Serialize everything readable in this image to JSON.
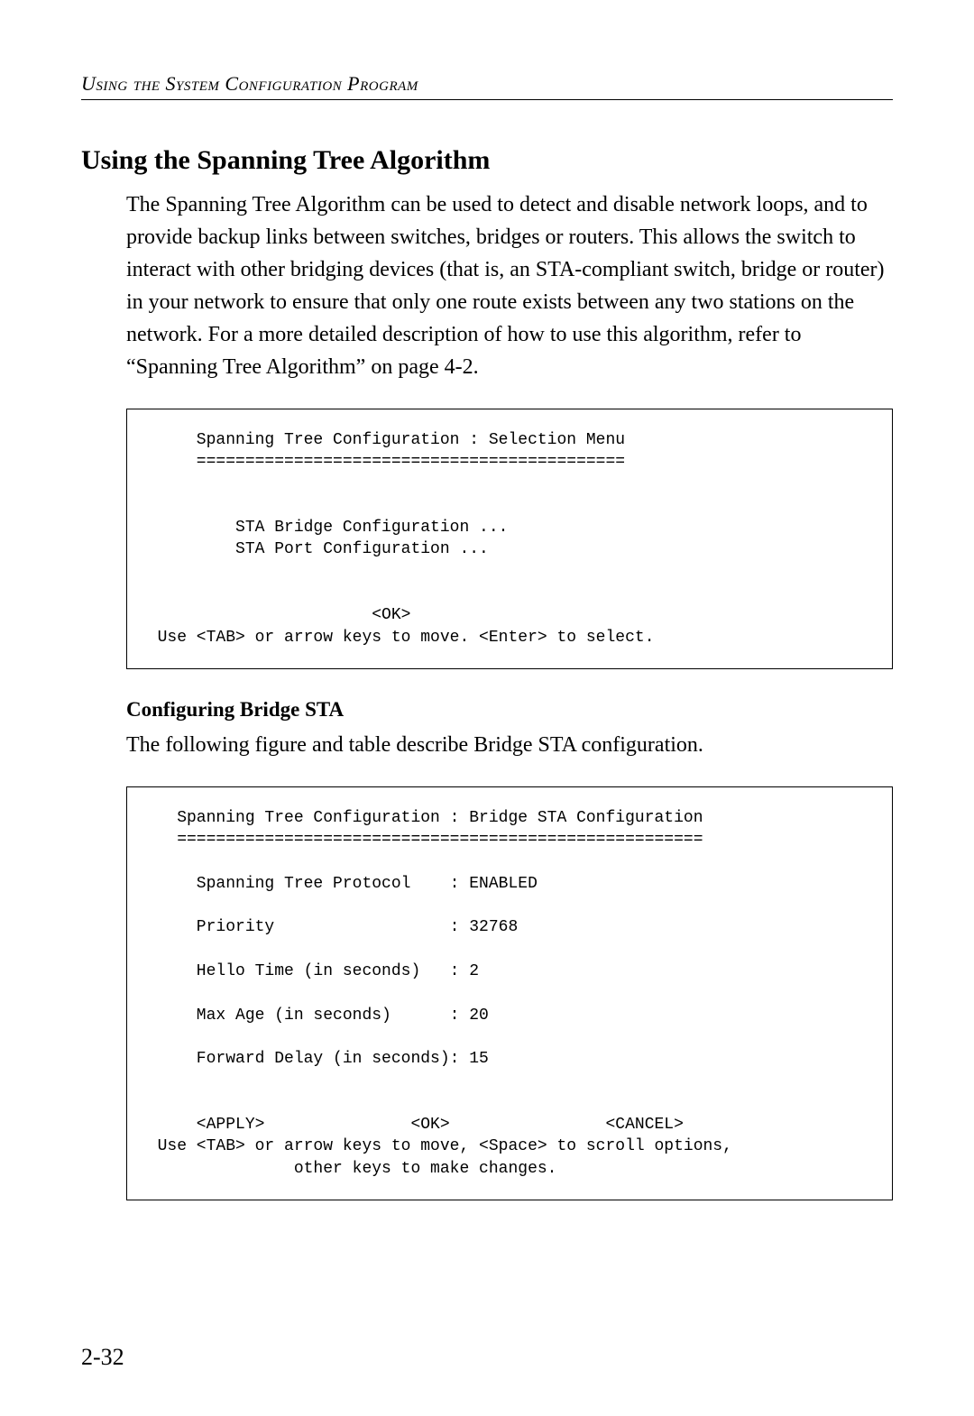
{
  "runningHeader": "Using the System Configuration Program",
  "sectionTitle": "Using the Spanning Tree Algorithm",
  "introParagraph": "The Spanning Tree Algorithm can be used to detect and disable network loops, and to provide backup links between switches, bridges or routers. This allows the switch to interact with other bridging devices (that is, an STA-compliant switch, bridge or router) in your network to ensure that only one route exists between any two stations on the network. For a more detailed description of how to use this algorithm, refer to “Spanning Tree Algorithm” on page 4-2.",
  "terminal1": {
    "title": "      Spanning Tree Configuration : Selection Menu",
    "rule": "      ============================================",
    "menuItem1": "          STA Bridge Configuration ...",
    "menuItem2": "          STA Port Configuration ...",
    "okLine": "                        <OK>",
    "hint": "  Use <TAB> or arrow keys to move. <Enter> to select."
  },
  "subsectionTitle": "Configuring Bridge STA",
  "subsectionIntro": "The following figure and table describe Bridge STA configuration.",
  "terminal2": {
    "title": "    Spanning Tree Configuration : Bridge STA Configuration",
    "rule": "    ======================================================",
    "row1": "      Spanning Tree Protocol    : ENABLED",
    "row2": "      Priority                  : 32768",
    "row3": "      Hello Time (in seconds)   : 2",
    "row4": "      Max Age (in seconds)      : 20",
    "row5": "      Forward Delay (in seconds): 15",
    "buttons": "      <APPLY>               <OK>                <CANCEL>",
    "hint1": "  Use <TAB> or arrow keys to move, <Space> to scroll options,",
    "hint2": "                other keys to make changes."
  },
  "pageNumber": "2-32"
}
